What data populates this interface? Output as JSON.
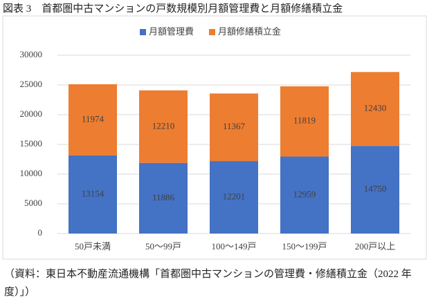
{
  "chart_data": {
    "type": "stacked_bar",
    "title": "図表 3　首都圏中古マンションの戸数規模別月額管理費と月額修繕積立金",
    "categories": [
      "50戸未満",
      "50～99戸",
      "100～149戸",
      "150～199戸",
      "200戸以上"
    ],
    "series": [
      {
        "name": "月額管理費",
        "color": "#4472c4",
        "values": [
          13154,
          11886,
          12201,
          12959,
          14750
        ]
      },
      {
        "name": "月額修繕積立金",
        "color": "#ed7d31",
        "values": [
          11974,
          12210,
          11367,
          11819,
          12430
        ]
      }
    ],
    "ylim": [
      0,
      30000
    ],
    "yticks": [
      0,
      5000,
      10000,
      15000,
      20000,
      25000,
      30000
    ],
    "grid": true,
    "legend": "top",
    "source": "（資料：東日本不動産流通機構「首都圏中古マンションの管理費・修繕積立金（2022 年度）」）"
  }
}
